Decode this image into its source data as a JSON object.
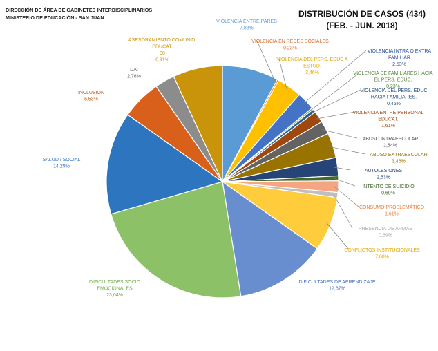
{
  "header": {
    "line1": "DIRECCIÓN DE ÁREA DE GABINETES INTERDISCIPLINARIOS",
    "line2": "MINISTERIO DE EDUCACIÓN - SAN JUAN"
  },
  "chart_data": {
    "type": "pie",
    "title": "DISTRIBUCIÓN DE CASOS (434)",
    "subtitle": "(FEB. - JUN. 2018)",
    "slices": [
      {
        "label": "VIOLENCIA ENTRE PARES",
        "value_text": "7,83%",
        "value": 7.83,
        "color": "#5b9bd5"
      },
      {
        "label": "VIOLENCIA EN REDES SOCIALES",
        "value_text": "0,23%",
        "value": 0.23,
        "color": "#ed7d31"
      },
      {
        "label": "VIOLENCIA DEL PERS. EDUC A ESTUD.",
        "value_text": "3,46%",
        "value": 3.46,
        "color": "#ffc000"
      },
      {
        "label": "VIOLENCIA INTRA O EXTRA FAMILIAR",
        "value_text": "2,53%",
        "value": 2.53,
        "color": "#4472c4"
      },
      {
        "label": "VIOLENCIA DE FAMILIARES HACIA EL PERS. EDUC.",
        "value_text": "0,23%",
        "value": 0.23,
        "color": "#70ad47"
      },
      {
        "label": "VIOLENCIA DEL PERS. EDUC HACIA FAMILIARES.",
        "value_text": "0,46%",
        "value": 0.46,
        "color": "#255e91"
      },
      {
        "label": "VIOLENCIA ENTRE PERSONAL EDUCAT.",
        "value_text": "1,61%",
        "value": 1.61,
        "color": "#9e480e"
      },
      {
        "label": "ABUSO INTRAESCOLAR",
        "value_text": "1,84%",
        "value": 1.84,
        "color": "#636363"
      },
      {
        "label": "ABUSO EXTRAESCOLAR",
        "value_text": "3,46%",
        "value": 3.46,
        "color": "#997300"
      },
      {
        "label": "AUTOLESIONES",
        "value_text": "2,53%",
        "value": 2.53,
        "color": "#264478"
      },
      {
        "label": "INTENTO DE SUICIDIO",
        "value_text": "0,69%",
        "value": 0.69,
        "color": "#43682b"
      },
      {
        "label": "CONSUMO PROBLEMÁTICO",
        "value_text": "1,61%",
        "value": 1.61,
        "color": "#f4a582"
      },
      {
        "label": "PRESENCIA DE ARMAS",
        "value_text": "0,69%",
        "value": 0.69,
        "color": "#bfbfbf"
      },
      {
        "label": "CONFLICTOS INSTITUCIONALES",
        "value_text": "7,60%",
        "value": 7.6,
        "color": "#ffcd3c"
      },
      {
        "label": "DIFICULTADES DE APRENDIZAJE",
        "value_text": "12,67%",
        "value": 12.67,
        "color": "#698ed0"
      },
      {
        "label": "DIFICULTADES SOCIO EMOCIONALES",
        "value_text": "23,04%",
        "value": 23.04,
        "color": "#8dc167"
      },
      {
        "label": "SALUD / SOCIAL",
        "value_text": "14,29%",
        "value": 14.29,
        "color": "#2e75c0"
      },
      {
        "label": "INCLUSIÓN",
        "value_text": "5,53%",
        "value": 5.53,
        "color": "#d8601b"
      },
      {
        "label": "DAI",
        "value_text": "2,76%",
        "value": 2.76,
        "color": "#8c8c8c"
      },
      {
        "label": "ASESORAMIENTO COMUNID. EDUCAT.",
        "count_text": "30",
        "value_text": "6,91%",
        "value": 6.91,
        "color": "#c9930a"
      }
    ]
  }
}
